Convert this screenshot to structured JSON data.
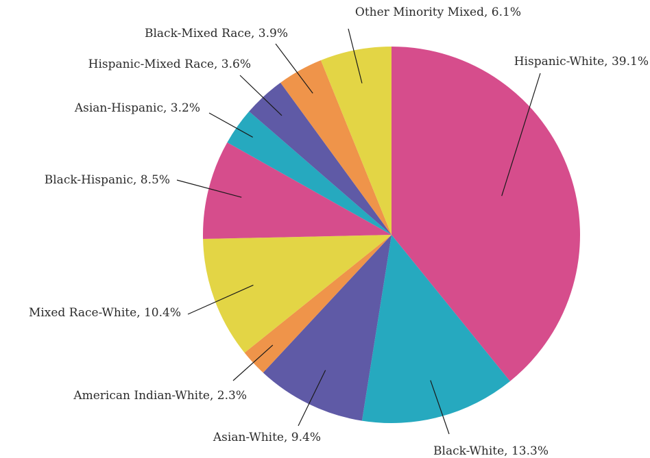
{
  "chart_data": {
    "type": "pie",
    "title": "",
    "slices": [
      {
        "label": "Hispanic-White",
        "value": 39.1,
        "display": "Hispanic-White, 39.1%",
        "color": "#d64d8c"
      },
      {
        "label": "Black-White",
        "value": 13.3,
        "display": "Black-White, 13.3%",
        "color": "#26a9bf"
      },
      {
        "label": "Asian-White",
        "value": 9.4,
        "display": "Asian-White, 9.4%",
        "color": "#5f5aa6"
      },
      {
        "label": "American Indian-White",
        "value": 2.3,
        "display": "American Indian-White, 2.3%",
        "color": "#ef944a"
      },
      {
        "label": "Mixed Race-White",
        "value": 10.4,
        "display": "Mixed Race-White, 10.4%",
        "color": "#e3d545"
      },
      {
        "label": "Black-Hispanic",
        "value": 8.5,
        "display": "Black-Hispanic, 8.5%",
        "color": "#d64d8c"
      },
      {
        "label": "Asian-Hispanic",
        "value": 3.2,
        "display": "Asian-Hispanic, 3.2%",
        "color": "#26a9bf"
      },
      {
        "label": "Hispanic-Mixed Race",
        "value": 3.6,
        "display": "Hispanic-Mixed Race, 3.6%",
        "color": "#5f5aa6"
      },
      {
        "label": "Black-Mixed Race",
        "value": 3.9,
        "display": "Black-Mixed Race, 3.9%",
        "color": "#ef944a"
      },
      {
        "label": "Other Minority Mixed",
        "value": 6.1,
        "display": "Other Minority Mixed, 6.1%",
        "color": "#e3d545"
      }
    ],
    "start": "12 o'clock",
    "direction": "clockwise",
    "legend": "none"
  }
}
